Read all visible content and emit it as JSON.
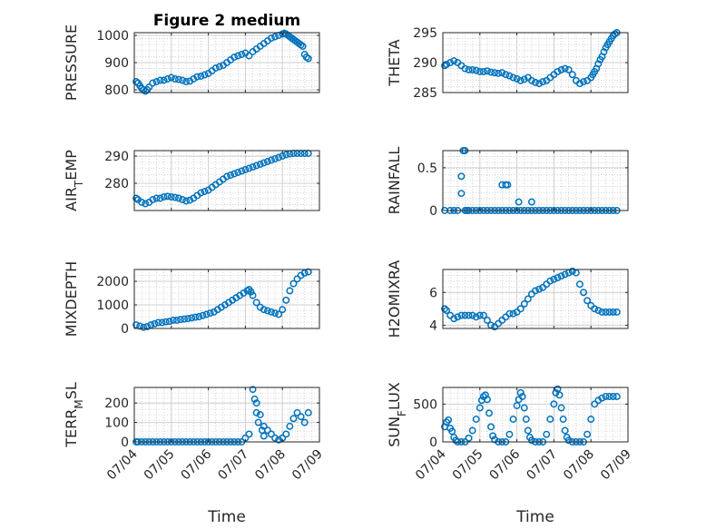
{
  "figure_title": "Figure 2 medium",
  "x_axis_label": "Time",
  "x_tick_labels": [
    "07/04",
    "07/05",
    "07/06",
    "07/07",
    "07/08",
    "07/09"
  ],
  "marker_color": "#0072BD",
  "chart_data": [
    {
      "type": "scatter",
      "panel": "top-left",
      "title": "Figure 2 medium",
      "ylabel": "PRESSURE",
      "ylim": [
        790,
        1010
      ],
      "yticks": [
        800,
        900,
        1000
      ],
      "xlim": [
        0,
        5
      ],
      "x": [
        0.05,
        0.1,
        0.15,
        0.2,
        0.25,
        0.3,
        0.35,
        0.4,
        0.5,
        0.6,
        0.7,
        0.8,
        0.9,
        1.0,
        1.1,
        1.2,
        1.3,
        1.4,
        1.5,
        1.6,
        1.7,
        1.8,
        1.9,
        2.0,
        2.1,
        2.2,
        2.3,
        2.4,
        2.5,
        2.6,
        2.7,
        2.8,
        2.9,
        3.0,
        3.1,
        3.2,
        3.3,
        3.4,
        3.5,
        3.6,
        3.7,
        3.8,
        3.9,
        4.0,
        4.05,
        4.1,
        4.15,
        4.2,
        4.25,
        4.3,
        4.35,
        4.4,
        4.45,
        4.5,
        4.55,
        4.6,
        4.65,
        4.7
      ],
      "y": [
        830,
        825,
        815,
        805,
        800,
        795,
        800,
        810,
        825,
        830,
        835,
        835,
        840,
        845,
        840,
        838,
        835,
        830,
        832,
        840,
        848,
        850,
        855,
        860,
        870,
        880,
        885,
        890,
        900,
        910,
        920,
        925,
        930,
        935,
        925,
        940,
        950,
        960,
        970,
        980,
        990,
        995,
        1000,
        1005,
        1008,
        1005,
        1000,
        995,
        990,
        985,
        980,
        975,
        970,
        965,
        960,
        930,
        920,
        915
      ]
    },
    {
      "type": "scatter",
      "panel": "top-right",
      "ylabel": "THETA",
      "ylim": [
        285,
        295
      ],
      "yticks": [
        285,
        290,
        295
      ],
      "xlim": [
        0,
        5
      ],
      "x": [
        0.05,
        0.1,
        0.2,
        0.3,
        0.4,
        0.5,
        0.6,
        0.7,
        0.8,
        0.9,
        1.0,
        1.1,
        1.2,
        1.3,
        1.4,
        1.5,
        1.6,
        1.7,
        1.8,
        1.9,
        2.0,
        2.1,
        2.2,
        2.3,
        2.4,
        2.5,
        2.6,
        2.7,
        2.8,
        2.9,
        3.0,
        3.1,
        3.2,
        3.3,
        3.4,
        3.5,
        3.6,
        3.7,
        3.8,
        3.9,
        4.0,
        4.05,
        4.1,
        4.15,
        4.2,
        4.25,
        4.3,
        4.35,
        4.4,
        4.45,
        4.5,
        4.55,
        4.6,
        4.65,
        4.7
      ],
      "y": [
        289.5,
        289.7,
        290.0,
        290.3,
        290.0,
        289.5,
        289.0,
        288.8,
        288.8,
        288.7,
        288.5,
        288.5,
        288.6,
        288.4,
        288.3,
        288.2,
        288.3,
        288.0,
        287.8,
        287.5,
        287.3,
        287.0,
        287.2,
        287.5,
        287.0,
        286.7,
        286.5,
        286.8,
        287.0,
        287.5,
        288.0,
        288.5,
        288.8,
        289.0,
        288.8,
        288.0,
        287.0,
        286.5,
        286.8,
        287.0,
        287.5,
        288.0,
        288.5,
        289.0,
        289.8,
        290.5,
        291.0,
        291.8,
        292.5,
        293.0,
        293.5,
        294.0,
        294.5,
        294.8,
        295.0
      ]
    },
    {
      "type": "scatter",
      "panel": "second-left",
      "ylabel": "AIR_TEMP",
      "ylim": [
        270,
        292
      ],
      "yticks": [
        280,
        290
      ],
      "xlim": [
        0,
        5
      ],
      "x": [
        0.05,
        0.1,
        0.2,
        0.3,
        0.4,
        0.5,
        0.6,
        0.7,
        0.8,
        0.9,
        1.0,
        1.1,
        1.2,
        1.3,
        1.4,
        1.5,
        1.6,
        1.7,
        1.8,
        1.9,
        2.0,
        2.1,
        2.2,
        2.3,
        2.4,
        2.5,
        2.6,
        2.7,
        2.8,
        2.9,
        3.0,
        3.1,
        3.2,
        3.3,
        3.4,
        3.5,
        3.6,
        3.7,
        3.8,
        3.9,
        4.0,
        4.1,
        4.2,
        4.3,
        4.4,
        4.5,
        4.6,
        4.7
      ],
      "y": [
        274.5,
        274.0,
        273.0,
        272.5,
        273.0,
        274.0,
        274.5,
        274.5,
        275.0,
        275.2,
        275.0,
        274.8,
        274.5,
        274.0,
        273.5,
        273.8,
        274.5,
        275.5,
        276.5,
        277.0,
        277.5,
        278.5,
        279.5,
        280.5,
        281.5,
        282.5,
        283.0,
        283.5,
        284.0,
        284.5,
        285.0,
        285.5,
        286.0,
        286.5,
        287.0,
        287.5,
        288.0,
        288.5,
        289.0,
        289.5,
        290.0,
        290.5,
        290.8,
        291.0,
        291.0,
        291.0,
        291.0,
        291.0
      ]
    },
    {
      "type": "scatter",
      "panel": "second-right",
      "ylabel": "RAINFALL",
      "ylim": [
        0,
        0.7
      ],
      "yticks": [
        0,
        0.5
      ],
      "xlim": [
        0,
        5
      ],
      "x": [
        0.05,
        0.2,
        0.3,
        0.4,
        0.5,
        0.6,
        0.7,
        0.8,
        0.9,
        1.0,
        1.1,
        1.2,
        1.3,
        1.4,
        1.5,
        1.6,
        1.7,
        1.8,
        1.9,
        2.0,
        2.1,
        2.2,
        2.3,
        2.4,
        2.5,
        2.6,
        2.7,
        2.8,
        2.9,
        3.0,
        3.1,
        3.2,
        3.3,
        3.4,
        3.5,
        3.6,
        3.7,
        3.8,
        3.9,
        4.0,
        4.1,
        4.2,
        4.3,
        4.4,
        4.5,
        4.6,
        4.7,
        0.5,
        0.55,
        0.6,
        0.65,
        1.6,
        1.7,
        1.75,
        2.05,
        2.4
      ],
      "y": [
        0,
        0,
        0,
        0,
        0.2,
        0,
        0,
        0,
        0,
        0,
        0,
        0,
        0,
        0,
        0,
        0,
        0,
        0,
        0,
        0,
        0,
        0,
        0,
        0,
        0,
        0,
        0,
        0,
        0,
        0,
        0,
        0,
        0,
        0,
        0,
        0,
        0,
        0,
        0,
        0,
        0,
        0,
        0,
        0,
        0,
        0,
        0,
        0.4,
        0.7,
        0.7,
        0,
        0.3,
        0.3,
        0.3,
        0.1,
        0.1
      ]
    },
    {
      "type": "scatter",
      "panel": "third-left",
      "ylabel": "MIXDEPTH",
      "ylim": [
        0,
        2500
      ],
      "yticks": [
        0,
        1000,
        2000
      ],
      "xlim": [
        0,
        5
      ],
      "x": [
        0.05,
        0.15,
        0.25,
        0.35,
        0.45,
        0.55,
        0.65,
        0.75,
        0.85,
        0.95,
        1.05,
        1.15,
        1.25,
        1.35,
        1.45,
        1.55,
        1.65,
        1.75,
        1.85,
        1.95,
        2.05,
        2.15,
        2.25,
        2.35,
        2.45,
        2.55,
        2.65,
        2.75,
        2.85,
        2.95,
        3.05,
        3.1,
        3.15,
        3.2,
        3.3,
        3.4,
        3.5,
        3.6,
        3.7,
        3.8,
        3.9,
        4.0,
        4.1,
        4.2,
        4.3,
        4.4,
        4.5,
        4.6,
        4.7
      ],
      "y": [
        150,
        100,
        50,
        80,
        150,
        200,
        250,
        250,
        280,
        300,
        350,
        350,
        380,
        400,
        420,
        450,
        480,
        500,
        550,
        600,
        650,
        700,
        800,
        900,
        1000,
        1100,
        1200,
        1300,
        1400,
        1500,
        1600,
        1650,
        1550,
        1400,
        1100,
        900,
        800,
        750,
        700,
        650,
        600,
        800,
        1200,
        1600,
        1900,
        2100,
        2250,
        2350,
        2400
      ]
    },
    {
      "type": "scatter",
      "panel": "third-right",
      "ylabel": "H2OMIXRA",
      "ylim": [
        3.8,
        7.4
      ],
      "yticks": [
        4,
        6
      ],
      "xlim": [
        0,
        5
      ],
      "x": [
        0.05,
        0.1,
        0.2,
        0.3,
        0.4,
        0.5,
        0.6,
        0.7,
        0.8,
        0.9,
        1.0,
        1.1,
        1.2,
        1.3,
        1.4,
        1.5,
        1.6,
        1.7,
        1.8,
        1.9,
        2.0,
        2.1,
        2.2,
        2.3,
        2.4,
        2.5,
        2.6,
        2.7,
        2.8,
        2.9,
        3.0,
        3.1,
        3.2,
        3.3,
        3.4,
        3.5,
        3.6,
        3.7,
        3.8,
        3.9,
        4.0,
        4.1,
        4.2,
        4.3,
        4.4,
        4.5,
        4.6,
        4.7
      ],
      "y": [
        5.0,
        4.9,
        4.6,
        4.4,
        4.5,
        4.6,
        4.6,
        4.6,
        4.6,
        4.5,
        4.6,
        4.6,
        4.3,
        4.0,
        3.9,
        4.1,
        4.3,
        4.5,
        4.7,
        4.7,
        4.8,
        5.0,
        5.3,
        5.6,
        5.9,
        6.1,
        6.2,
        6.3,
        6.5,
        6.7,
        6.8,
        6.9,
        7.0,
        7.1,
        7.2,
        7.3,
        7.2,
        6.5,
        6.0,
        5.5,
        5.2,
        5.0,
        4.9,
        4.8,
        4.8,
        4.8,
        4.8,
        4.8
      ]
    },
    {
      "type": "scatter",
      "panel": "bottom-left",
      "ylabel": "TERR_MSL",
      "ylim": [
        0,
        280
      ],
      "yticks": [
        0,
        100,
        200
      ],
      "xlim": [
        0,
        5
      ],
      "x": [
        0.05,
        0.1,
        0.2,
        0.3,
        0.4,
        0.5,
        0.6,
        0.7,
        0.8,
        0.9,
        1.0,
        1.1,
        1.2,
        1.3,
        1.4,
        1.5,
        1.6,
        1.7,
        1.8,
        1.9,
        2.0,
        2.1,
        2.2,
        2.3,
        2.4,
        2.5,
        2.6,
        2.7,
        2.8,
        2.9,
        3.0,
        3.1,
        3.2,
        3.3,
        3.4,
        3.5,
        3.6,
        3.7,
        3.8,
        3.9,
        4.0,
        4.1,
        4.2,
        4.3,
        4.4,
        4.5,
        4.6,
        4.7,
        3.25,
        3.3,
        3.35,
        3.45,
        3.5
      ],
      "y": [
        0,
        0,
        0,
        0,
        0,
        0,
        0,
        0,
        0,
        0,
        0,
        0,
        0,
        0,
        0,
        0,
        0,
        0,
        0,
        0,
        0,
        0,
        0,
        0,
        0,
        0,
        0,
        0,
        0,
        0,
        20,
        40,
        270,
        200,
        140,
        80,
        60,
        40,
        20,
        10,
        20,
        40,
        80,
        120,
        150,
        130,
        100,
        150,
        220,
        150,
        100,
        60,
        30
      ]
    },
    {
      "type": "scatter",
      "panel": "bottom-right",
      "ylabel": "SUN_FLUX",
      "ylim": [
        0,
        720
      ],
      "yticks": [
        0,
        500
      ],
      "xlim": [
        0,
        5
      ],
      "x": [
        0.05,
        0.1,
        0.15,
        0.2,
        0.25,
        0.3,
        0.35,
        0.4,
        0.5,
        0.6,
        0.7,
        0.8,
        0.9,
        1.0,
        1.05,
        1.1,
        1.15,
        1.2,
        1.25,
        1.3,
        1.35,
        1.4,
        1.5,
        1.6,
        1.7,
        1.8,
        1.9,
        2.0,
        2.05,
        2.1,
        2.15,
        2.2,
        2.25,
        2.3,
        2.35,
        2.4,
        2.5,
        2.6,
        2.7,
        2.8,
        2.9,
        3.0,
        3.05,
        3.1,
        3.15,
        3.2,
        3.25,
        3.3,
        3.35,
        3.4,
        3.5,
        3.6,
        3.7,
        3.8,
        3.9,
        4.0,
        4.1,
        4.2,
        4.3,
        4.4,
        4.5,
        4.6,
        4.7
      ],
      "y": [
        200,
        260,
        290,
        180,
        140,
        60,
        20,
        0,
        0,
        0,
        50,
        150,
        300,
        450,
        550,
        600,
        620,
        560,
        380,
        200,
        80,
        30,
        0,
        0,
        0,
        100,
        300,
        480,
        560,
        650,
        600,
        450,
        300,
        150,
        60,
        20,
        0,
        0,
        0,
        100,
        300,
        500,
        650,
        700,
        620,
        450,
        300,
        150,
        60,
        20,
        0,
        0,
        0,
        0,
        100,
        300,
        500,
        550,
        580,
        600,
        600,
        600,
        600
      ]
    }
  ]
}
